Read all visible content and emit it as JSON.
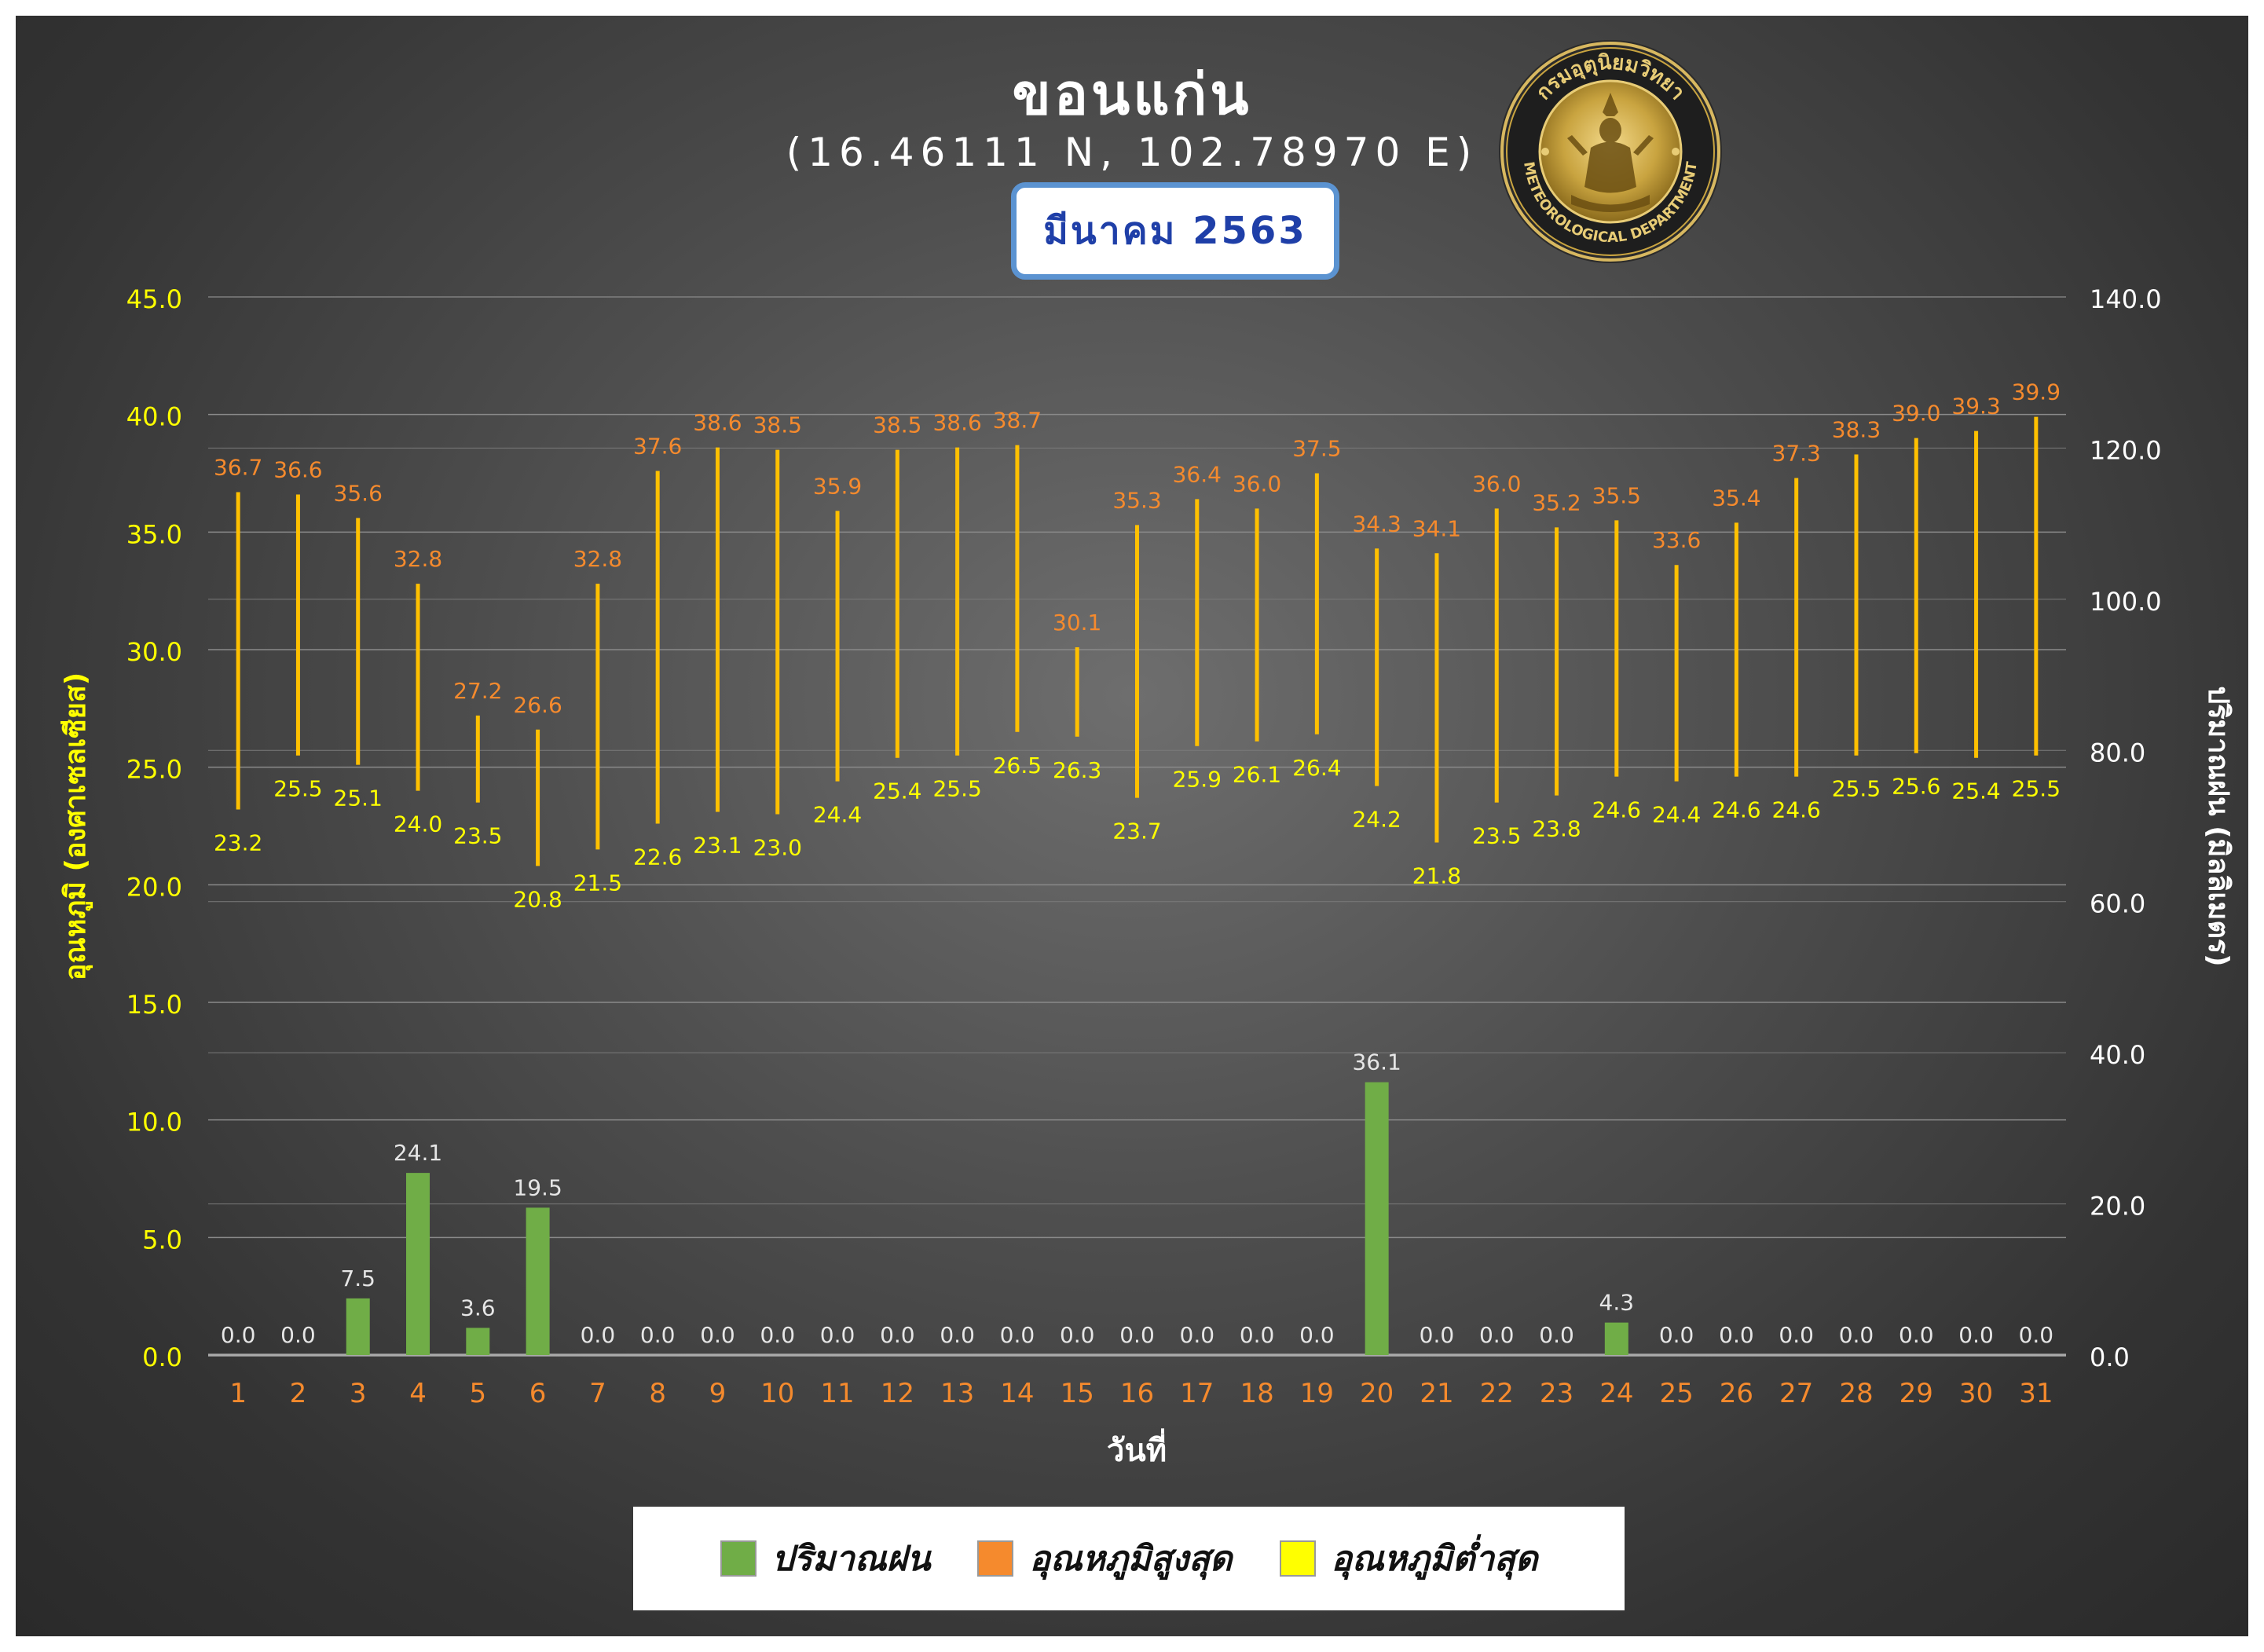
{
  "header": {
    "city": "ขอนแก่น",
    "coords": "(16.46111 N, 102.78970 E)",
    "month": "มีนาคม 2563"
  },
  "seal": {
    "text_top": "กรมอุตุนิยมวิทยา",
    "text_bottom": "METEOROLOGICAL DEPARTMENT"
  },
  "legend": [
    {
      "label": "ปริมาณฝน",
      "color": "#70ad47"
    },
    {
      "label": "อุณหภูมิสูงสุด",
      "color": "#f58a2d"
    },
    {
      "label": "อุณหภูมิต่ำสุด",
      "color": "#ffff00"
    }
  ],
  "chart_data": {
    "type": "bar",
    "xlabel": "วันที่",
    "ylabel": "อุณหภูมิ (องศาเซลเซียส)",
    "y2label": "ปริมาณฝน (มิลลิเมตร)",
    "ylim": [
      0,
      45
    ],
    "y2lim": [
      0,
      140
    ],
    "yticks": [
      "0.0",
      "5.0",
      "10.0",
      "15.0",
      "20.0",
      "25.0",
      "30.0",
      "35.0",
      "40.0",
      "45.0"
    ],
    "y2ticks": [
      "0.0",
      "20.0",
      "40.0",
      "60.0",
      "80.0",
      "100.0",
      "120.0",
      "140.0"
    ],
    "categories": [
      "1",
      "2",
      "3",
      "4",
      "5",
      "6",
      "7",
      "8",
      "9",
      "10",
      "11",
      "12",
      "13",
      "14",
      "15",
      "16",
      "17",
      "18",
      "19",
      "20",
      "21",
      "22",
      "23",
      "24",
      "25",
      "26",
      "27",
      "28",
      "29",
      "30",
      "31"
    ],
    "series": [
      {
        "name": "ปริมาณฝน",
        "axis": "right",
        "color": "#70ad47",
        "values": [
          0.0,
          0.0,
          7.5,
          24.1,
          3.6,
          19.5,
          0.0,
          0.0,
          0.0,
          0.0,
          0.0,
          0.0,
          0.0,
          0.0,
          0.0,
          0.0,
          0.0,
          0.0,
          0.0,
          36.1,
          0.0,
          0.0,
          0.0,
          4.3,
          0.0,
          0.0,
          0.0,
          0.0,
          0.0,
          0.0,
          0.0
        ]
      },
      {
        "name": "อุณหภูมิสูงสุด",
        "axis": "left",
        "color": "#f58a2d",
        "values": [
          36.7,
          36.6,
          35.6,
          32.8,
          27.2,
          26.6,
          32.8,
          37.6,
          38.6,
          38.5,
          35.9,
          38.5,
          38.6,
          38.7,
          30.1,
          35.3,
          36.4,
          36.0,
          37.5,
          34.3,
          34.1,
          36.0,
          35.2,
          35.5,
          33.6,
          35.4,
          37.3,
          38.3,
          39.0,
          39.3,
          39.9
        ]
      },
      {
        "name": "อุณหภูมิต่ำสุด",
        "axis": "left",
        "color": "#ffff00",
        "values": [
          23.2,
          25.5,
          25.1,
          24.0,
          23.5,
          20.8,
          21.5,
          22.6,
          23.1,
          23.0,
          24.4,
          25.4,
          25.5,
          26.5,
          26.3,
          23.7,
          25.9,
          26.1,
          26.4,
          24.2,
          21.8,
          23.5,
          23.8,
          24.6,
          24.4,
          24.6,
          24.6,
          25.5,
          25.6,
          25.4,
          25.5
        ]
      }
    ],
    "grid": true,
    "legend_position": "bottom"
  }
}
